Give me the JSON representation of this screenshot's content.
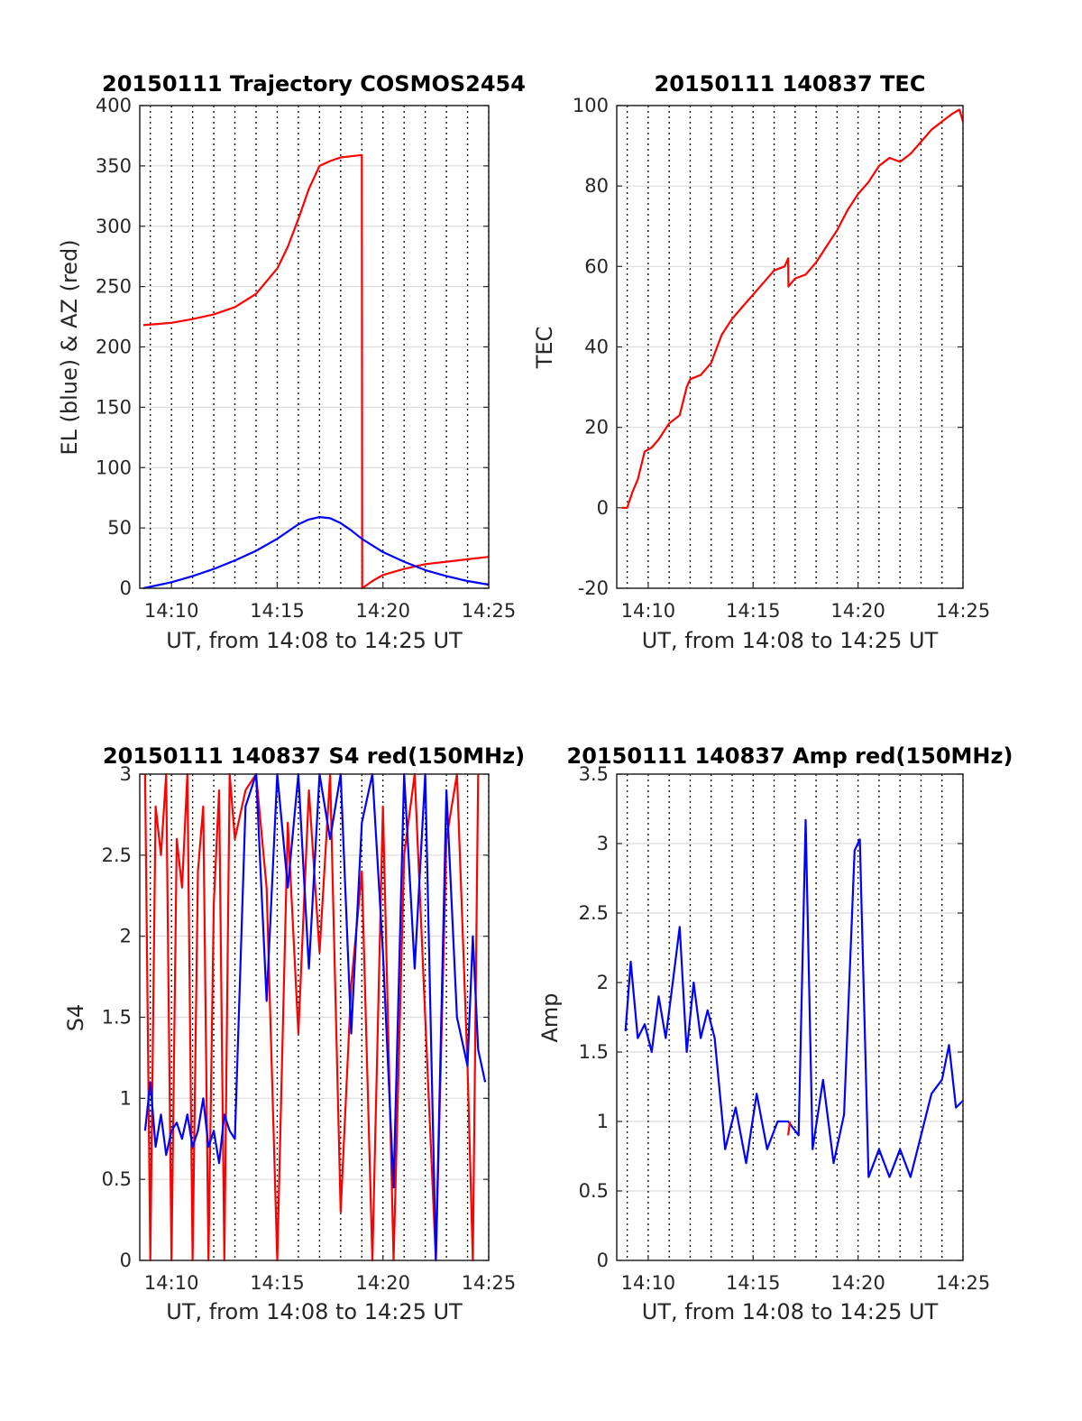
{
  "figure": {
    "colors": {
      "red": "#ff0000",
      "blue": "#0000ff",
      "grid": "#dcdcdc",
      "axes": "#262626"
    }
  },
  "chart_data": [
    {
      "type": "line",
      "title": "20150111 Trajectory COSMOS2454",
      "xlabel": "UT, from 14:08 to 14:25 UT",
      "ylabel": "EL (blue) & AZ (red)",
      "xlim": [
        "14:08:30",
        "14:25:00"
      ],
      "ylim": [
        0,
        400
      ],
      "xticks": [
        "14:10",
        "14:15",
        "14:20",
        "14:25"
      ],
      "yticks": [
        "0",
        "50",
        "100",
        "150",
        "200",
        "250",
        "300",
        "350",
        "400"
      ],
      "grid": "horizontal major lines; dotted vertical lines every minute",
      "series": [
        {
          "color": "red",
          "x": [
            "14:08:40",
            "14:10:00",
            "14:11:00",
            "14:12:00",
            "14:13:00",
            "14:14:00",
            "14:15:00",
            "14:15:30",
            "14:16:00",
            "14:16:30",
            "14:17:00",
            "14:17:30",
            "14:18:00",
            "14:18:30",
            "14:19:00",
            "14:19:01",
            "14:19:30",
            "14:20:00",
            "14:21:00",
            "14:22:00",
            "14:23:00",
            "14:24:00",
            "14:25:00"
          ],
          "values": [
            218,
            220,
            223,
            227,
            233,
            244,
            265,
            283,
            306,
            331,
            350,
            354,
            357,
            358,
            359,
            0,
            6,
            11,
            16,
            20,
            22,
            24,
            26
          ]
        },
        {
          "color": "blue",
          "x": [
            "14:08:40",
            "14:10:00",
            "14:11:00",
            "14:12:00",
            "14:13:00",
            "14:14:00",
            "14:15:00",
            "14:15:30",
            "14:16:00",
            "14:16:30",
            "14:17:00",
            "14:17:30",
            "14:18:00",
            "14:18:30",
            "14:19:00",
            "14:20:00",
            "14:21:00",
            "14:22:00",
            "14:23:00",
            "14:24:00",
            "14:25:00"
          ],
          "values": [
            0,
            5,
            10,
            16,
            23,
            31,
            41,
            47,
            53,
            57,
            59,
            58,
            54,
            48,
            41,
            30,
            22,
            15,
            10,
            6,
            3
          ]
        }
      ]
    },
    {
      "type": "line",
      "title": "20150111 140837 TEC",
      "xlabel": "UT, from 14:08 to 14:25 UT",
      "ylabel": "TEC",
      "xlim": [
        "14:08:30",
        "14:25:00"
      ],
      "ylim": [
        -20,
        100
      ],
      "xticks": [
        "14:10",
        "14:15",
        "14:20",
        "14:25"
      ],
      "yticks": [
        "-20",
        "0",
        "20",
        "40",
        "60",
        "80",
        "100"
      ],
      "grid": "horizontal major lines; dotted vertical lines every minute",
      "series": [
        {
          "color": "red",
          "x": [
            "14:08:45",
            "14:09:00",
            "14:09:15",
            "14:09:30",
            "14:09:50",
            "14:10:10",
            "14:10:30",
            "14:11:00",
            "14:11:30",
            "14:11:50",
            "14:12:00",
            "14:12:30",
            "14:13:00",
            "14:13:30",
            "14:14:00",
            "14:14:30",
            "14:15:00",
            "14:15:30",
            "14:16:00",
            "14:16:30",
            "14:16:40",
            "14:16:41",
            "14:17:00",
            "14:17:30",
            "14:18:00",
            "14:18:30",
            "14:19:00",
            "14:19:30",
            "14:20:00",
            "14:20:30",
            "14:21:00",
            "14:21:30",
            "14:22:00",
            "14:22:30",
            "14:23:00",
            "14:23:30",
            "14:24:00",
            "14:24:30",
            "14:24:50",
            "14:25:00"
          ],
          "values": [
            0,
            0,
            4,
            7,
            14,
            15,
            17,
            21,
            23,
            30,
            32,
            33,
            36,
            43,
            47,
            50,
            53,
            56,
            59,
            60,
            62,
            55,
            57,
            58,
            61,
            65,
            69,
            74,
            78,
            81,
            85,
            87,
            86,
            88,
            91,
            94,
            96,
            98,
            99,
            96
          ]
        }
      ]
    },
    {
      "type": "line",
      "title": "20150111 140837 S4 red(150MHz)",
      "xlabel": "UT, from 14:08 to 14:25 UT",
      "ylabel": "S4",
      "xlim": [
        "14:08:30",
        "14:25:00"
      ],
      "ylim": [
        0,
        3
      ],
      "xticks": [
        "14:10",
        "14:15",
        "14:20",
        "14:25"
      ],
      "yticks": [
        "0",
        "0.5",
        "1",
        "1.5",
        "2",
        "2.5",
        "3"
      ],
      "grid": "horizontal major lines; dotted vertical lines every minute",
      "series": [
        {
          "color": "red",
          "x": [
            "14:08:45",
            "14:09:00",
            "14:09:15",
            "14:09:30",
            "14:09:45",
            "14:10:00",
            "14:10:15",
            "14:10:30",
            "14:10:45",
            "14:11:00",
            "14:11:15",
            "14:11:30",
            "14:11:45",
            "14:12:00",
            "14:12:15",
            "14:12:30",
            "14:12:45",
            "14:13:00",
            "14:13:30",
            "14:14:00",
            "14:14:30",
            "14:15:00",
            "14:15:30",
            "14:16:00",
            "14:16:30",
            "14:17:00",
            "14:17:30",
            "14:18:00",
            "14:18:30",
            "14:19:00",
            "14:19:30",
            "14:20:00",
            "14:20:30",
            "14:21:00",
            "14:21:30",
            "14:22:00",
            "14:22:30",
            "14:23:00",
            "14:23:30",
            "14:24:00",
            "14:24:15",
            "14:24:30"
          ],
          "values": [
            3.0,
            0.0,
            2.8,
            2.5,
            3.0,
            0.0,
            2.6,
            2.3,
            3.0,
            0.0,
            2.4,
            2.8,
            0.0,
            2.2,
            2.9,
            0.0,
            3.0,
            2.6,
            2.9,
            3.0,
            2.3,
            0.0,
            2.7,
            1.4,
            2.9,
            1.9,
            3.0,
            0.3,
            1.7,
            2.4,
            0.0,
            2.8,
            0.0,
            2.5,
            3.0,
            1.5,
            0.0,
            2.6,
            3.0,
            1.2,
            0.0,
            3.0
          ]
        },
        {
          "color": "blue",
          "x": [
            "14:08:45",
            "14:09:00",
            "14:09:15",
            "14:09:30",
            "14:09:45",
            "14:10:00",
            "14:10:15",
            "14:10:30",
            "14:10:45",
            "14:11:00",
            "14:11:15",
            "14:11:30",
            "14:11:45",
            "14:12:00",
            "14:12:15",
            "14:12:30",
            "14:12:45",
            "14:13:00",
            "14:13:30",
            "14:14:00",
            "14:14:30",
            "14:15:00",
            "14:15:30",
            "14:16:00",
            "14:16:30",
            "14:17:00",
            "14:17:30",
            "14:18:00",
            "14:18:30",
            "14:19:00",
            "14:19:30",
            "14:20:00",
            "14:20:30",
            "14:21:00",
            "14:21:30",
            "14:22:00",
            "14:22:30",
            "14:23:00",
            "14:23:30",
            "14:24:00",
            "14:24:15",
            "14:24:30",
            "14:24:50"
          ],
          "values": [
            0.8,
            1.1,
            0.7,
            0.9,
            0.65,
            0.8,
            0.85,
            0.75,
            0.9,
            0.7,
            0.8,
            1.0,
            0.7,
            0.8,
            0.6,
            0.9,
            0.8,
            0.75,
            2.8,
            3.0,
            1.6,
            3.0,
            2.3,
            3.0,
            1.8,
            3.0,
            2.6,
            3.0,
            1.4,
            2.7,
            3.0,
            1.9,
            0.45,
            3.0,
            1.8,
            3.0,
            0.0,
            2.9,
            1.5,
            1.2,
            2.0,
            1.3,
            1.1
          ]
        }
      ]
    },
    {
      "type": "line",
      "title": "20150111 140837 Amp red(150MHz)",
      "xlabel": "UT, from 14:08 to 14:25 UT",
      "ylabel": "Amp",
      "xlim": [
        "14:08:30",
        "14:25:00"
      ],
      "ylim": [
        0,
        3.5
      ],
      "xticks": [
        "14:10",
        "14:15",
        "14:20",
        "14:25"
      ],
      "yticks": [
        "0",
        "0.5",
        "1",
        "1.5",
        "2",
        "2.5",
        "3",
        "3.5"
      ],
      "grid": "horizontal major lines; dotted vertical lines every minute",
      "series": [
        {
          "color": "blue",
          "x": [
            "14:08:55",
            "14:09:10",
            "14:09:30",
            "14:09:50",
            "14:10:10",
            "14:10:30",
            "14:10:50",
            "14:11:10",
            "14:11:30",
            "14:11:50",
            "14:12:10",
            "14:12:30",
            "14:12:50",
            "14:13:10",
            "14:13:40",
            "14:14:10",
            "14:14:40",
            "14:15:10",
            "14:15:40",
            "14:16:10",
            "14:16:40",
            "14:17:10",
            "14:17:30",
            "14:17:50",
            "14:18:20",
            "14:18:50",
            "14:19:20",
            "14:19:50",
            "14:20:05",
            "14:20:30",
            "14:21:00",
            "14:21:30",
            "14:22:00",
            "14:22:30",
            "14:23:00",
            "14:23:30",
            "14:24:00",
            "14:24:20",
            "14:24:40",
            "14:25:00"
          ],
          "values": [
            1.65,
            2.15,
            1.6,
            1.7,
            1.5,
            1.9,
            1.6,
            2.0,
            2.4,
            1.5,
            2.0,
            1.6,
            1.8,
            1.6,
            0.8,
            1.1,
            0.7,
            1.2,
            0.8,
            1.0,
            1.0,
            0.9,
            3.17,
            0.8,
            1.3,
            0.7,
            1.05,
            2.95,
            3.03,
            0.6,
            0.8,
            0.6,
            0.8,
            0.6,
            0.9,
            1.2,
            1.3,
            1.55,
            1.1,
            1.15
          ]
        },
        {
          "color": "red",
          "x": [
            "14:16:40",
            "14:16:45"
          ],
          "values": [
            0.9,
            1.0
          ]
        }
      ]
    }
  ]
}
